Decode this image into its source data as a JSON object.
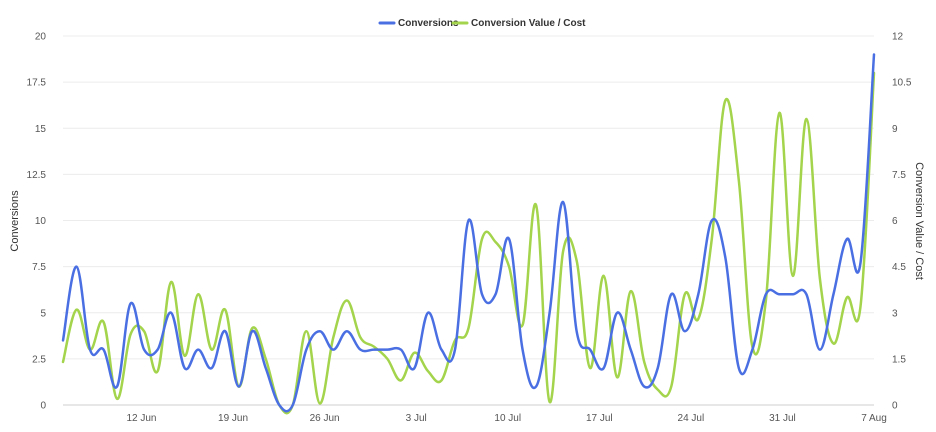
{
  "chart_data": {
    "type": "line",
    "x_tick_labels": [
      "12 Jun",
      "19 Jun",
      "26 Jun",
      "3 Jul",
      "10 Jul",
      "17 Jul",
      "24 Jul",
      "31 Jul",
      "7 Aug"
    ],
    "x_range_days": [
      0,
      62
    ],
    "grid": "horizontal",
    "legend_position": "top-center",
    "ylabel": "Conversions",
    "ylim": [
      0,
      20
    ],
    "y_ticks": [
      "0",
      "2.5",
      "5",
      "7.5",
      "10",
      "12.5",
      "15",
      "17.5",
      "20"
    ],
    "y2label": "Conversion Value / Cost",
    "y2lim": [
      0,
      12
    ],
    "y2_ticks": [
      "0",
      "1.5",
      "3",
      "4.5",
      "6",
      "7.5",
      "9",
      "10.5",
      "12"
    ],
    "series": [
      {
        "name": "Conversions",
        "axis": "left",
        "color": "#4a6fe3",
        "values": [
          3.5,
          7.5,
          3,
          3,
          1,
          5.5,
          3,
          3,
          5,
          2,
          3,
          2,
          4,
          1,
          4,
          2,
          0,
          0,
          3,
          4,
          3,
          4,
          3,
          3,
          3,
          3,
          2,
          5,
          3,
          3,
          10,
          6,
          6,
          9,
          3,
          1,
          5,
          11,
          4,
          3,
          2,
          5,
          3,
          1,
          2,
          6,
          4,
          6,
          10,
          8,
          2,
          3,
          6,
          6,
          6,
          6,
          3,
          6,
          9,
          7.7,
          19
        ]
      },
      {
        "name": "Conversion Value / Cost",
        "axis": "right",
        "color": "#a3d44c",
        "values": [
          1.4,
          3.1,
          1.8,
          2.7,
          0.2,
          2.3,
          2.4,
          1.1,
          4,
          1.6,
          3.6,
          1.8,
          3.1,
          0.6,
          2.5,
          1.5,
          0,
          0,
          2.4,
          0.05,
          2.2,
          3.4,
          2.2,
          1.9,
          1.5,
          0.8,
          1.7,
          1.1,
          0.8,
          2.1,
          2.5,
          5.4,
          5.3,
          4.5,
          2.6,
          6.5,
          0.1,
          5,
          4.7,
          1.2,
          4.2,
          0.9,
          3.7,
          1.4,
          0.5,
          0.6,
          3.6,
          2.8,
          5.4,
          9.9,
          7.3,
          1.9,
          3.4,
          9.5,
          4.2,
          9.3,
          4.1,
          2,
          3.5,
          3.2,
          10.8
        ]
      }
    ]
  }
}
